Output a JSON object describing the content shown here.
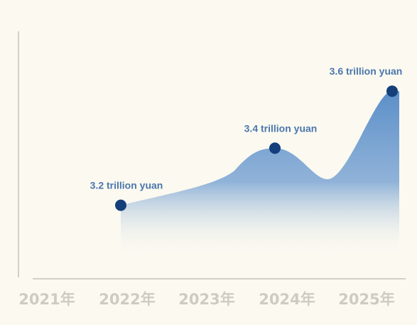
{
  "chart_data": {
    "type": "area",
    "categories": [
      "2021年",
      "2022年",
      "2023年",
      "2024年",
      "2025年"
    ],
    "series": [
      {
        "points": [
          {
            "x": "2022年",
            "value": 3.2,
            "label": "3.2 trillion yuan"
          },
          {
            "x": "2024年",
            "value": 3.4,
            "label": "3.4 trillion yuan"
          },
          {
            "x": "2025年",
            "value": 3.6,
            "label": "3.6 trillion yuan"
          }
        ]
      }
    ],
    "ylim": [
      2.8,
      3.8
    ],
    "grid": false,
    "colors": {
      "area_top": "#5b8fc8",
      "area_bottom": "#fbf9f0",
      "marker": "#143f7a",
      "label": "#4b77ad",
      "tick": "#cfcbc2",
      "axis": "#d4d0c8",
      "background": "#fbf9f0"
    }
  }
}
